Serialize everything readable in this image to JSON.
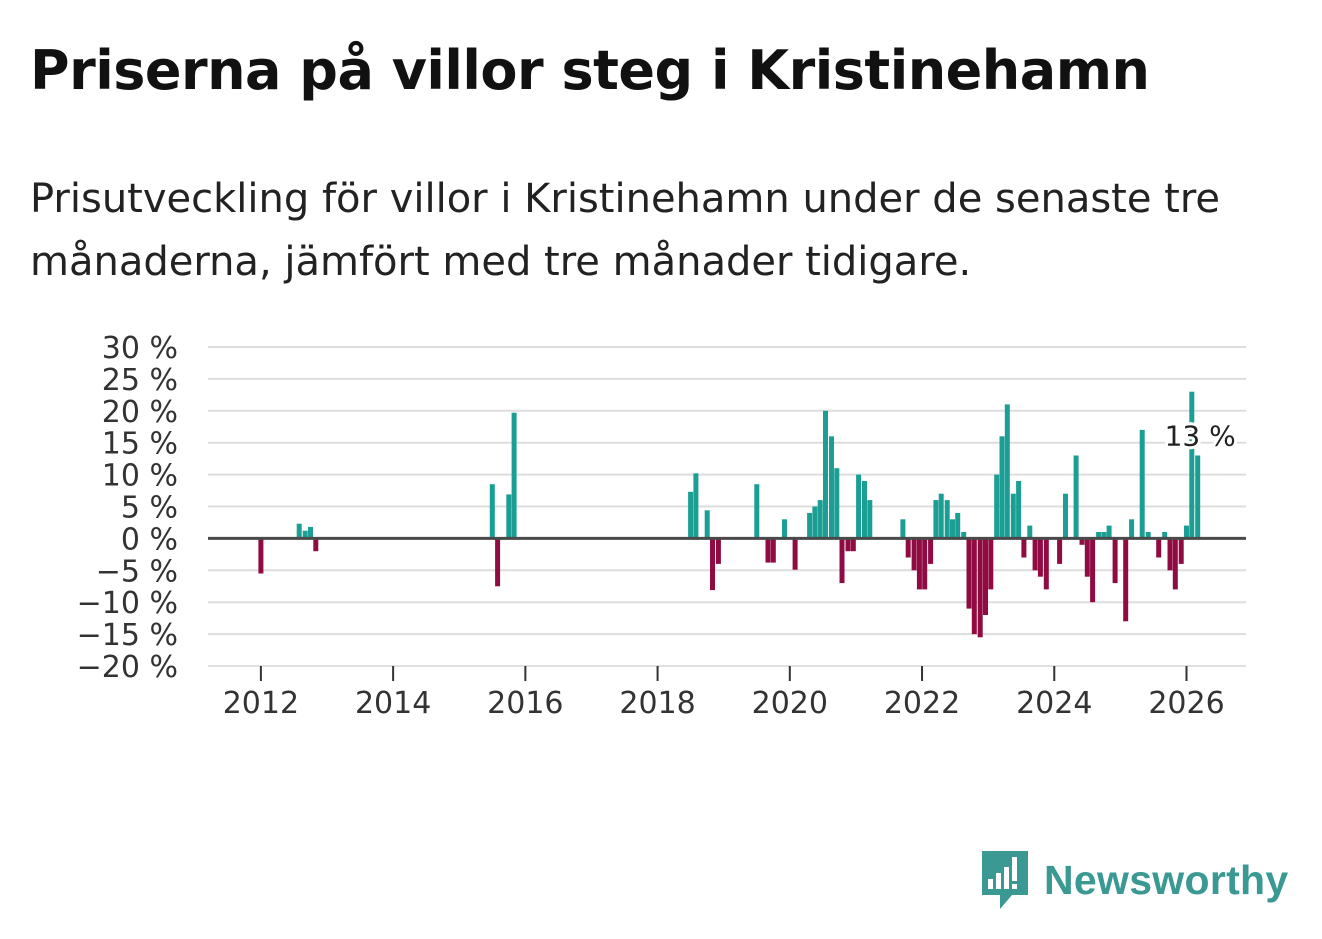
{
  "title": "Priserna på villor steg i Kristinehamn",
  "subtitle": "Prisutveckling för villor i Kristinehamn under de senaste tre månaderna, jämfört med tre månader tidigare.",
  "brand": {
    "name": "Newsworthy",
    "color": "#3a9992"
  },
  "chart_data": {
    "type": "bar",
    "title": "Priserna på villor steg i Kristinehamn",
    "xlabel": "",
    "ylabel": "",
    "x_unit": "year (decimal)",
    "y_unit": "%",
    "xlim": [
      2011.2,
      2026.9
    ],
    "ylim": [
      -20,
      30
    ],
    "yticks": [
      30,
      25,
      20,
      15,
      10,
      5,
      0,
      -5,
      -10,
      -15,
      -20
    ],
    "ytick_labels": [
      "30 %",
      "25 %",
      "20 %",
      "15 %",
      "10 %",
      "5 %",
      "0 %",
      "−5 %",
      "−10 %",
      "−15 %",
      "−20 %"
    ],
    "xticks": [
      2012,
      2014,
      2016,
      2018,
      2020,
      2022,
      2024,
      2026
    ],
    "xtick_labels": [
      "2012",
      "2014",
      "2016",
      "2018",
      "2020",
      "2022",
      "2024",
      "2026"
    ],
    "positive_color": "#1b9e94",
    "negative_color": "#8f0b41",
    "annotation": {
      "text": "13 %",
      "x": 2026.17,
      "y": 13
    },
    "series": [
      {
        "name": "Prisutveckling",
        "x": [
          2012.0,
          2012.58,
          2012.67,
          2012.75,
          2012.83,
          2015.5,
          2015.58,
          2015.75,
          2015.83,
          2018.5,
          2018.58,
          2018.75,
          2018.83,
          2018.92,
          2019.5,
          2019.67,
          2019.75,
          2019.92,
          2020.08,
          2020.3,
          2020.38,
          2020.46,
          2020.54,
          2020.63,
          2020.71,
          2020.79,
          2020.88,
          2020.96,
          2021.04,
          2021.13,
          2021.21,
          2021.29,
          2021.71,
          2021.79,
          2021.88,
          2021.96,
          2022.04,
          2022.13,
          2022.21,
          2022.29,
          2022.38,
          2022.46,
          2022.54,
          2022.63,
          2022.71,
          2022.79,
          2022.88,
          2022.96,
          2023.04,
          2023.13,
          2023.21,
          2023.29,
          2023.38,
          2023.46,
          2023.54,
          2023.63,
          2023.71,
          2023.79,
          2023.88,
          2024.08,
          2024.17,
          2024.33,
          2024.42,
          2024.5,
          2024.58,
          2024.67,
          2024.75,
          2024.83,
          2024.92,
          2025.08,
          2025.17,
          2025.33,
          2025.42,
          2025.58,
          2025.67,
          2025.75,
          2025.83,
          2025.92,
          2026.0,
          2026.08,
          2026.17
        ],
        "values": [
          -5.5,
          2.3,
          1.2,
          1.8,
          -2.0,
          8.5,
          -7.5,
          6.9,
          19.7,
          7.3,
          10.2,
          4.4,
          -8.1,
          -4.0,
          8.5,
          -3.8,
          -3.8,
          3.0,
          -4.9,
          4.0,
          5.0,
          6.0,
          20.0,
          16.0,
          11.0,
          -7.0,
          -2.0,
          -2.0,
          10.0,
          9.0,
          6.0,
          0.0,
          3.0,
          -3.0,
          -5.0,
          -8.0,
          -8.0,
          -4.0,
          6.0,
          7.0,
          6.0,
          3.0,
          4.0,
          1.0,
          -11.0,
          -15.0,
          -15.5,
          -12.0,
          -8.0,
          10.0,
          16.0,
          21.0,
          7.0,
          9.0,
          -3.0,
          2.0,
          -5.0,
          -6.0,
          -8.0,
          -4.0,
          7.0,
          13.0,
          -1.0,
          -6.0,
          -10.0,
          1.0,
          1.0,
          2.0,
          -7.0,
          -13.0,
          3.0,
          17.0,
          1.0,
          -3.0,
          1.0,
          -5.0,
          -8.0,
          -4.0,
          2.0,
          23.0,
          13.0
        ]
      }
    ]
  }
}
